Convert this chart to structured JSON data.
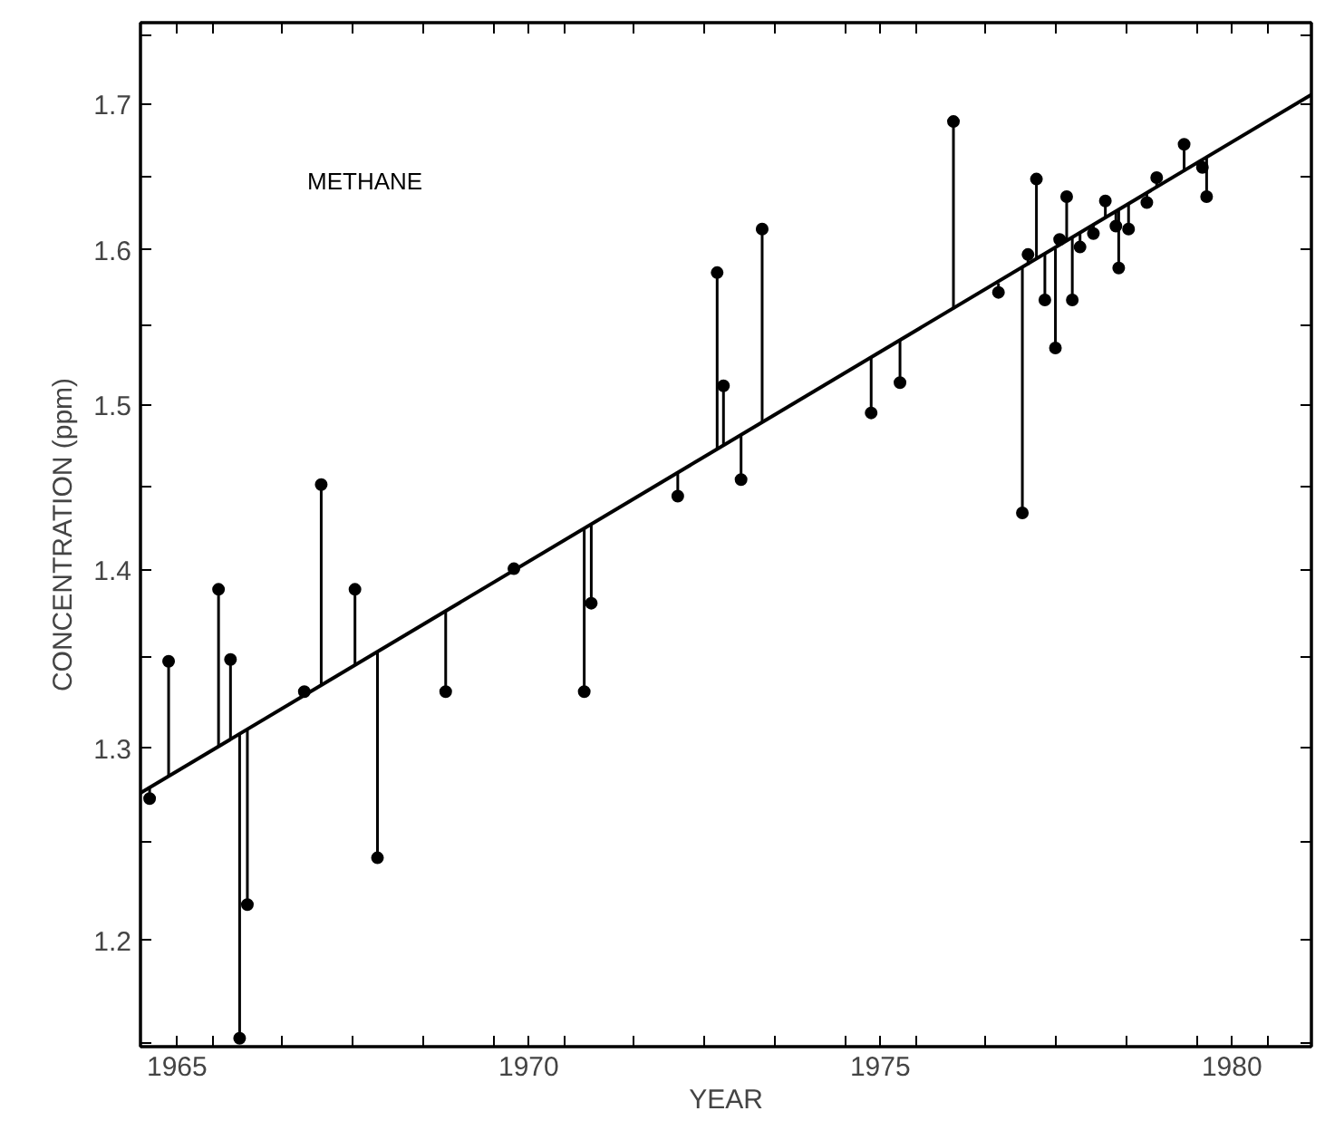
{
  "chart_data": {
    "type": "scatter",
    "xlabel": "YEAR",
    "ylabel": "CONCENTRATION (ppm)",
    "annotations": [
      "METHANE"
    ],
    "log": "y",
    "grid": false,
    "marker": "circle",
    "xlim": [
      1964.48,
      1981.13
    ],
    "ylim": [
      1.148,
      1.759
    ],
    "xticks": [
      1965,
      1970,
      1975,
      1980,
      {
        "value": 1965.5,
        "label": null
      },
      {
        "value": 1966.5,
        "label": null
      },
      {
        "value": 1967.5,
        "label": null
      },
      {
        "value": 1968.5,
        "label": null
      },
      {
        "value": 1969.5,
        "label": null
      },
      {
        "value": 1970.5,
        "label": null
      },
      {
        "value": 1971.5,
        "label": null
      },
      {
        "value": 1972.5,
        "label": null
      },
      {
        "value": 1973.5,
        "label": null
      },
      {
        "value": 1974.5,
        "label": null
      },
      {
        "value": 1975.5,
        "label": null
      },
      {
        "value": 1976.5,
        "label": null
      },
      {
        "value": 1977.5,
        "label": null
      },
      {
        "value": 1978.5,
        "label": null
      },
      {
        "value": 1979.5,
        "label": null
      },
      {
        "value": 1980.5,
        "label": null
      }
    ],
    "yticks": [
      1.2,
      1.3,
      1.4,
      1.5,
      1.6,
      1.7,
      {
        "value": 1.15,
        "label": null
      },
      {
        "value": 1.25,
        "label": null
      },
      {
        "value": 1.35,
        "label": null
      },
      {
        "value": 1.45,
        "label": null
      },
      {
        "value": 1.55,
        "label": null
      },
      {
        "value": 1.65,
        "label": null
      },
      {
        "value": 1.75,
        "label": null
      }
    ],
    "series": [
      {
        "color": "#000000",
        "x": [
          1964.61,
          1964.88,
          1965.59,
          1965.76,
          1965.89,
          1966.0,
          1966.81,
          1967.05,
          1967.53,
          1967.85,
          1968.82,
          1969.79,
          1970.79,
          1970.89,
          1972.12,
          1972.68,
          1972.77,
          1973.02,
          1973.32,
          1974.87,
          1975.28,
          1976.04,
          1976.68,
          1977.02,
          1977.1,
          1977.22,
          1977.34,
          1977.49,
          1977.55,
          1977.65,
          1977.73,
          1977.84,
          1978.03,
          1978.2,
          1978.35,
          1978.39,
          1978.53,
          1978.79,
          1978.93,
          1979.32,
          1979.58,
          1979.64
        ],
        "values": [
          1.273,
          1.348,
          1.389,
          1.349,
          1.152,
          1.218,
          1.331,
          1.451,
          1.389,
          1.242,
          1.331,
          1.401,
          1.331,
          1.381,
          1.444,
          1.585,
          1.512,
          1.454,
          1.614,
          1.495,
          1.514,
          1.688,
          1.572,
          1.434,
          1.597,
          1.648,
          1.567,
          1.536,
          1.607,
          1.636,
          1.567,
          1.602,
          1.611,
          1.633,
          1.616,
          1.588,
          1.614,
          1.632,
          1.649,
          1.672,
          1.656,
          1.636
        ],
        "errors": [
          [
            1.273,
            1.279
          ],
          [
            1.285,
            1.348
          ],
          [
            1.301,
            1.389
          ],
          [
            1.305,
            1.349
          ],
          [
            1.152,
            1.308
          ],
          [
            1.218,
            1.31
          ],
          [
            1.329,
            1.331
          ],
          [
            1.335,
            1.451
          ],
          [
            1.346,
            1.389
          ],
          [
            1.242,
            1.353
          ],
          [
            1.331,
            1.376
          ],
          [
            1.4,
            1.401
          ],
          [
            1.331,
            1.425
          ],
          [
            1.381,
            1.427
          ],
          [
            1.444,
            1.458
          ],
          [
            1.473,
            1.585
          ],
          [
            1.475,
            1.512
          ],
          [
            1.454,
            1.481
          ],
          [
            1.489,
            1.614
          ],
          [
            1.495,
            1.53
          ],
          [
            1.514,
            1.541
          ],
          [
            1.561,
            1.688
          ],
          [
            1.572,
            1.578
          ],
          [
            1.434,
            1.588
          ],
          [
            1.59,
            1.597
          ],
          [
            1.594,
            1.648
          ],
          [
            1.567,
            1.597
          ],
          [
            1.536,
            1.601
          ],
          [
            1.603,
            1.607
          ],
          [
            1.606,
            1.636
          ],
          [
            1.567,
            1.608
          ],
          [
            1.602,
            1.611
          ],
          [
            1.611,
            1.617
          ],
          [
            1.622,
            1.633
          ],
          [
            1.616,
            1.626
          ],
          [
            1.588,
            1.627
          ],
          [
            1.614,
            1.631
          ],
          [
            1.632,
            1.638
          ],
          [
            1.642,
            1.649
          ],
          [
            1.653,
            1.672
          ],
          [
            1.656,
            1.661
          ],
          [
            1.636,
            1.663
          ]
        ]
      },
      {
        "type": "line",
        "marker": "none",
        "color": "#000000",
        "x": [
          1964.48,
          1981.13
        ],
        "values": [
          1.276,
          1.707
        ]
      }
    ]
  }
}
